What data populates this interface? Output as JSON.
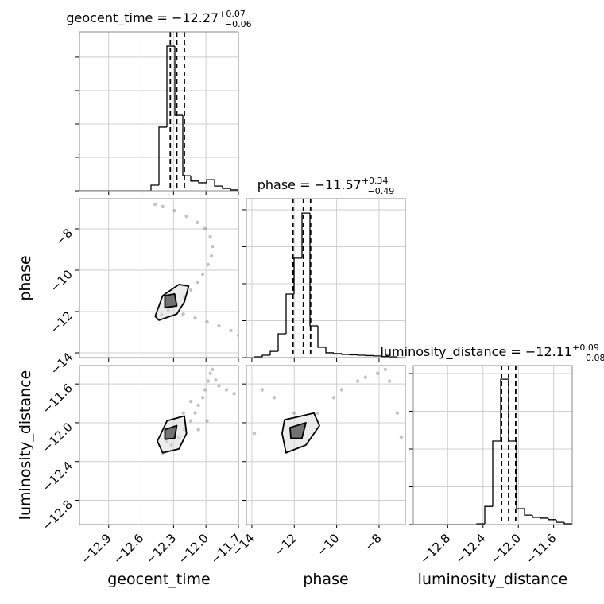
{
  "chart_data": [
    {
      "type": "histogram",
      "title": "geocent_time = −12.27",
      "title_upper": "+0.07",
      "title_lower": "−0.06",
      "bins": [
        -13.17,
        -13.0965,
        -13.023,
        -12.9495,
        -12.876,
        -12.8025,
        -12.729,
        -12.6555,
        -12.582,
        -12.5085,
        -12.435,
        -12.3615,
        -12.288,
        -12.2145,
        -12.141,
        -12.0675,
        -11.994,
        -11.9205,
        -11.847,
        -11.7735,
        -11.7
      ],
      "values": [
        0,
        0,
        0,
        0,
        0,
        0,
        0,
        0,
        0,
        167,
        1905,
        4330,
        2260,
        450,
        290,
        240,
        330,
        140,
        70,
        25
      ],
      "quantiles": [
        -12.33,
        -12.27,
        -12.2
      ],
      "color": "#000000",
      "xlim": [
        -13.17,
        -11.7
      ],
      "xticks": [
        -12.9,
        -12.6,
        -12.3,
        -12.0,
        -11.7
      ],
      "ylim": [
        0,
        4760
      ],
      "yticks": [
        0,
        1000,
        2000,
        3000,
        4000
      ],
      "grid": true
    },
    {
      "type": "scatter",
      "ylabel": "phase",
      "x": [
        -12.47,
        -12.4,
        -12.29,
        -12.18,
        -12.08,
        -12.01,
        -11.96,
        -11.94,
        -11.95,
        -11.98,
        -12.03,
        -12.08,
        -12.14,
        -12.2,
        -12.27,
        -12.35,
        -12.41,
        -12.21,
        -12.1,
        -11.99,
        -11.88,
        -11.77,
        -11.7,
        -12.32,
        -12.36,
        -12.29
      ],
      "values": [
        -6.81,
        -6.92,
        -7.12,
        -7.39,
        -7.69,
        -8.0,
        -8.39,
        -8.85,
        -9.31,
        -9.73,
        -10.19,
        -10.58,
        -10.96,
        -11.27,
        -11.62,
        -11.92,
        -12.15,
        -12.12,
        -12.31,
        -12.5,
        -12.69,
        -12.92,
        -13.15,
        -11.46,
        -11.73,
        -11.23
      ],
      "contours": [
        {
          "x": [
            -12.47,
            -12.4,
            -12.25,
            -12.16,
            -12.2,
            -12.27,
            -12.435
          ],
          "y": [
            -12.23,
            -11.23,
            -10.69,
            -10.77,
            -11.54,
            -12.12,
            -12.42
          ]
        },
        {
          "x": [
            -12.38,
            -12.29,
            -12.27,
            -12.38
          ],
          "y": [
            -11.23,
            -11.15,
            -11.73,
            -11.81
          ]
        }
      ],
      "color": "#555555",
      "xlim": [
        -13.17,
        -11.7
      ],
      "xticks": [
        -12.9,
        -12.6,
        -12.3,
        -12.0,
        -11.7
      ],
      "ylim": [
        -14.23,
        -6.54
      ],
      "yticks": [
        {
          "value": -8,
          "label": "−8"
        },
        {
          "value": -10,
          "label": "−10"
        },
        {
          "value": -12,
          "label": "−12"
        },
        {
          "value": -14,
          "label": "−14"
        }
      ],
      "grid": true
    },
    {
      "type": "histogram",
      "title": "phase = −11.57",
      "title_upper": "+0.34",
      "title_lower": "−0.49",
      "bins": [
        -14.26,
        -13.885,
        -13.51,
        -13.135,
        -12.76,
        -12.385,
        -12.01,
        -11.635,
        -11.26,
        -10.885,
        -10.51,
        -10.135,
        -9.76,
        -9.385,
        -9.01,
        -8.635,
        -8.26,
        -7.885,
        -7.51,
        -7.135,
        -6.76
      ],
      "values": [
        0,
        20,
        65,
        170,
        645,
        1720,
        2690,
        3910,
        860,
        280,
        130,
        110,
        86,
        75,
        65,
        55,
        45,
        30,
        20,
        0
      ],
      "quantiles": [
        -12.06,
        -11.57,
        -11.23
      ],
      "color": "#000000",
      "xlim": [
        -14.26,
        -6.76
      ],
      "xticks": [
        -14,
        -12,
        -10,
        -8
      ],
      "ylim": [
        0,
        4300
      ],
      "yticks": [
        0,
        1000,
        2000,
        3000,
        4000
      ],
      "grid": true
    },
    {
      "type": "scatter",
      "xlabel": "geocent_time",
      "ylabel": "luminosity_distance",
      "x": [
        -12.4,
        -12.32,
        -12.25,
        -12.2,
        -12.14,
        -12.1,
        -12.07,
        -12.03,
        -12.01,
        -11.98,
        -11.96,
        -11.94,
        -11.88,
        -11.81,
        -11.74,
        -12.14,
        -12.21,
        -12.29,
        -12.36,
        -12.07,
        -11.99,
        -11.91
      ],
      "values": [
        -12.31,
        -12.23,
        -12.15,
        -12.07,
        -11.98,
        -11.9,
        -11.82,
        -11.74,
        -11.66,
        -11.57,
        -11.49,
        -11.45,
        -11.62,
        -11.66,
        -11.7,
        -11.78,
        -11.9,
        -12.11,
        -12.19,
        -12.07,
        -11.98,
        -11.56
      ],
      "contours": [
        {
          "x": [
            -12.45,
            -12.36,
            -12.2,
            -12.18,
            -12.25,
            -12.4
          ],
          "y": [
            -12.19,
            -11.98,
            -11.93,
            -12.11,
            -12.27,
            -12.31
          ]
        },
        {
          "x": [
            -12.38,
            -12.27,
            -12.29,
            -12.38
          ],
          "y": [
            -12.07,
            -12.03,
            -12.16,
            -12.17
          ]
        }
      ],
      "color": "#555555",
      "xlim": [
        -13.17,
        -11.7
      ],
      "xticks": [
        {
          "value": -12.9,
          "label": "−12.9"
        },
        {
          "value": -12.6,
          "label": "−12.6"
        },
        {
          "value": -12.3,
          "label": "−12.3"
        },
        {
          "value": -12.0,
          "label": "−12.0"
        },
        {
          "value": -11.7,
          "label": "−11.7"
        }
      ],
      "ylim": [
        -13.05,
        -11.41
      ],
      "yticks": [
        {
          "value": -11.6,
          "label": "−11.6"
        },
        {
          "value": -12.0,
          "label": "−12.0"
        },
        {
          "value": -12.4,
          "label": "−12.4"
        },
        {
          "value": -12.8,
          "label": "−12.8"
        }
      ],
      "grid": true
    },
    {
      "type": "scatter",
      "xlabel": "phase",
      "x": [
        -13.51,
        -12.01,
        -11.82,
        -10.89,
        -10.14,
        -9.01,
        -8.07,
        -7.51,
        -7.14,
        -6.95,
        -13.885,
        -12.95,
        -9.76,
        -8.64,
        -7.7
      ],
      "values": [
        -11.66,
        -11.9,
        -12.11,
        -11.9,
        -11.74,
        -11.57,
        -11.49,
        -11.57,
        -11.9,
        -12.15,
        -12.11,
        -11.74,
        -11.66,
        -11.53,
        -11.45
      ],
      "contours": [
        {
          "x": [
            -12.46,
            -11.07,
            -10.81,
            -11.45,
            -12.39,
            -12.575
          ],
          "y": [
            -11.97,
            -11.9,
            -12.03,
            -12.23,
            -12.31,
            -12.11
          ]
        },
        {
          "x": [
            -12.2,
            -11.45,
            -11.64,
            -12.16
          ],
          "y": [
            -12.05,
            -12.0,
            -12.16,
            -12.16
          ]
        }
      ],
      "color": "#555555",
      "xlim": [
        -14.26,
        -6.76
      ],
      "xticks": [
        {
          "value": -14,
          "label": "−14"
        },
        {
          "value": -12,
          "label": "−12"
        },
        {
          "value": -10,
          "label": "−10"
        },
        {
          "value": -8,
          "label": "−8"
        }
      ],
      "ylim": [
        -13.05,
        -11.41
      ],
      "yticks": [
        -11.6,
        -12.0,
        -12.4,
        -12.8
      ],
      "grid": true
    },
    {
      "type": "histogram",
      "title": "luminosity_distance = −12.11",
      "title_upper": "+0.09",
      "title_lower": "−0.08",
      "xlabel": "luminosity_distance",
      "bins": [
        -13.19,
        -13.1,
        -13.01,
        -12.92,
        -12.83,
        -12.74,
        -12.65,
        -12.56,
        -12.47,
        -12.38,
        -12.29,
        -12.2,
        -12.11,
        -12.02,
        -11.93,
        -11.84,
        -11.75,
        -11.66,
        -11.57,
        -11.48,
        -11.39
      ],
      "values": [
        0,
        0,
        0,
        0,
        0,
        0,
        0,
        0,
        20,
        480,
        2210,
        3850,
        2210,
        420,
        250,
        190,
        170,
        130,
        60,
        20
      ],
      "quantiles": [
        -12.19,
        -12.11,
        -12.03
      ],
      "color": "#000000",
      "xlim": [
        -13.19,
        -11.39
      ],
      "xticks": [
        {
          "value": -12.8,
          "label": "−12.8"
        },
        {
          "value": -12.4,
          "label": "−12.4"
        },
        {
          "value": -12.0,
          "label": "−12.0"
        },
        {
          "value": -11.6,
          "label": "−11.6"
        }
      ],
      "ylim": [
        0,
        4210
      ],
      "yticks": [
        0,
        1000,
        2000,
        3000,
        4000
      ],
      "grid": true
    }
  ]
}
